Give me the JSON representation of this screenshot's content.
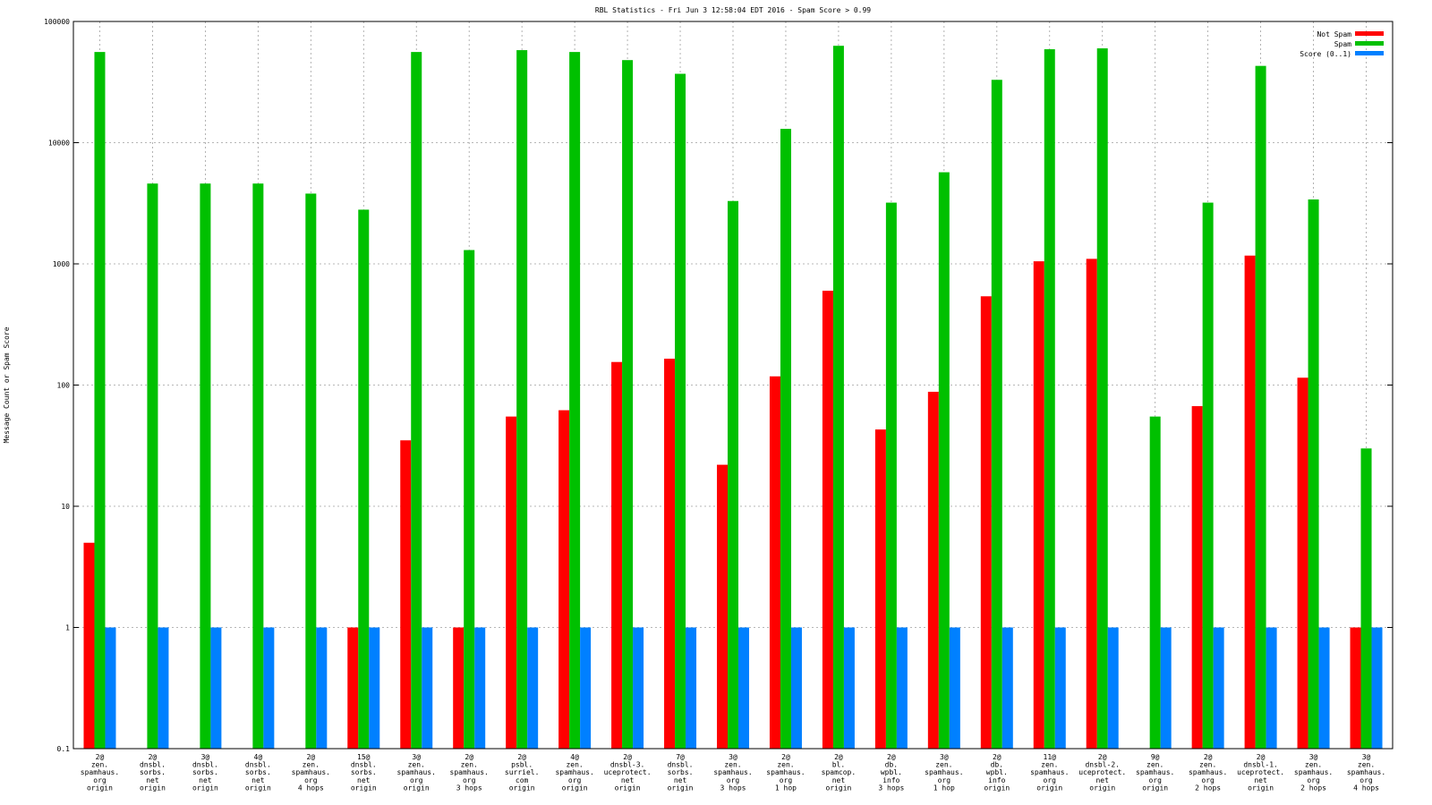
{
  "chart_data": {
    "type": "bar",
    "title": "RBL Statistics - Fri Jun  3 12:58:04 EDT 2016 - Spam Score > 0.99",
    "ylabel": "Message Count or Spam Score",
    "xlabel": "",
    "yscale": "log",
    "ylim": [
      0.1,
      100000
    ],
    "yticks": [
      "0.1",
      "1",
      "10",
      "100",
      "1000",
      "10000",
      "100000"
    ],
    "grid": true,
    "legend_position": "top-right",
    "categories": [
      [
        "2@",
        "zen.",
        "spamhaus.",
        "org",
        "origin"
      ],
      [
        "2@",
        "dnsbl.",
        "sorbs.",
        "net",
        "origin"
      ],
      [
        "3@",
        "dnsbl.",
        "sorbs.",
        "net",
        "origin"
      ],
      [
        "4@",
        "dnsbl.",
        "sorbs.",
        "net",
        "origin"
      ],
      [
        "2@",
        "zen.",
        "spamhaus.",
        "org",
        "4 hops"
      ],
      [
        "15@",
        "dnsbl.",
        "sorbs.",
        "net",
        "origin"
      ],
      [
        "3@",
        "zen.",
        "spamhaus.",
        "org",
        "origin"
      ],
      [
        "2@",
        "zen.",
        "spamhaus.",
        "org",
        "3 hops"
      ],
      [
        "2@",
        "psbl.",
        "surriel.",
        "com",
        "origin"
      ],
      [
        "4@",
        "zen.",
        "spamhaus.",
        "org",
        "origin"
      ],
      [
        "2@",
        "dnsbl-3.",
        "uceprotect.",
        "net",
        "origin"
      ],
      [
        "7@",
        "dnsbl.",
        "sorbs.",
        "net",
        "origin"
      ],
      [
        "3@",
        "zen.",
        "spamhaus.",
        "org",
        "3 hops"
      ],
      [
        "2@",
        "zen.",
        "spamhaus.",
        "org",
        "1 hop"
      ],
      [
        "2@",
        "bl.",
        "spamcop.",
        "net",
        "origin"
      ],
      [
        "2@",
        "db.",
        "wpbl.",
        "info",
        "3 hops"
      ],
      [
        "3@",
        "zen.",
        "spamhaus.",
        "org",
        "1 hop"
      ],
      [
        "2@",
        "db.",
        "wpbl.",
        "info",
        "origin"
      ],
      [
        "11@",
        "zen.",
        "spamhaus.",
        "org",
        "origin"
      ],
      [
        "2@",
        "dnsbl-2.",
        "uceprotect.",
        "net",
        "origin"
      ],
      [
        "9@",
        "zen.",
        "spamhaus.",
        "org",
        "origin"
      ],
      [
        "2@",
        "zen.",
        "spamhaus.",
        "org",
        "2 hops"
      ],
      [
        "2@",
        "dnsbl-1.",
        "uceprotect.",
        "net",
        "origin"
      ],
      [
        "3@",
        "zen.",
        "spamhaus.",
        "org",
        "2 hops"
      ],
      [
        "3@",
        "zen.",
        "spamhaus.",
        "org",
        "4 hops"
      ]
    ],
    "series": [
      {
        "name": "Not Spam",
        "color": "#ff0000",
        "values": [
          5,
          null,
          null,
          null,
          null,
          1,
          35,
          1,
          55,
          62,
          155,
          165,
          22,
          118,
          600,
          43,
          88,
          540,
          1050,
          1100,
          null,
          67,
          1170,
          115,
          1
        ]
      },
      {
        "name": "Spam",
        "color": "#00c000",
        "values": [
          56000,
          4600,
          4600,
          4600,
          3800,
          2800,
          56000,
          1300,
          58000,
          56000,
          48000,
          37000,
          3300,
          13000,
          63000,
          3200,
          5700,
          33000,
          59000,
          60000,
          55,
          3200,
          43000,
          3400,
          30
        ]
      },
      {
        "name": "Score (0..1)",
        "color": "#0080ff",
        "values": [
          1,
          1,
          1,
          1,
          1,
          1,
          1,
          1,
          1,
          1,
          1,
          1,
          1,
          1,
          1,
          1,
          1,
          1,
          1,
          1,
          1,
          1,
          1,
          1,
          1
        ]
      }
    ]
  }
}
